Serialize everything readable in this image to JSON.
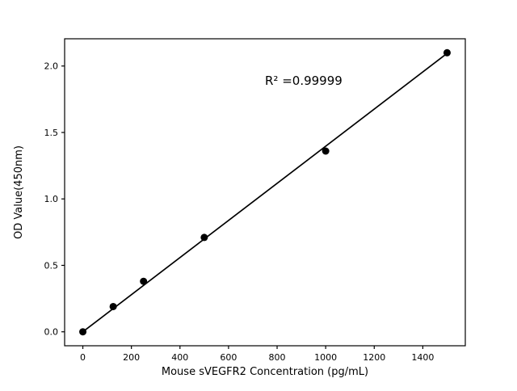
{
  "chart_data": {
    "type": "scatter",
    "title": "",
    "xlabel": "Mouse sVEGFR2 Concentration (pg/mL)",
    "ylabel": "OD Value(450nm)",
    "x": [
      0,
      125,
      250,
      500,
      1000,
      1500
    ],
    "y": [
      0.0,
      0.19,
      0.38,
      0.71,
      1.36,
      2.1
    ],
    "fit_line": {
      "x": [
        0,
        1500
      ],
      "y": [
        0.0,
        2.095
      ]
    },
    "annotation": {
      "text": "R² =0.99999"
    },
    "xlim": [
      -75,
      1575
    ],
    "ylim": [
      -0.105,
      2.205
    ],
    "xticks": [
      0,
      200,
      400,
      600,
      800,
      1000,
      1200,
      1400
    ],
    "yticks": [
      0.0,
      0.5,
      1.0,
      1.5,
      2.0
    ],
    "grid": false,
    "legend": null,
    "marker_color": "#000000",
    "line_color": "#000000",
    "background_color": "#ffffff"
  }
}
